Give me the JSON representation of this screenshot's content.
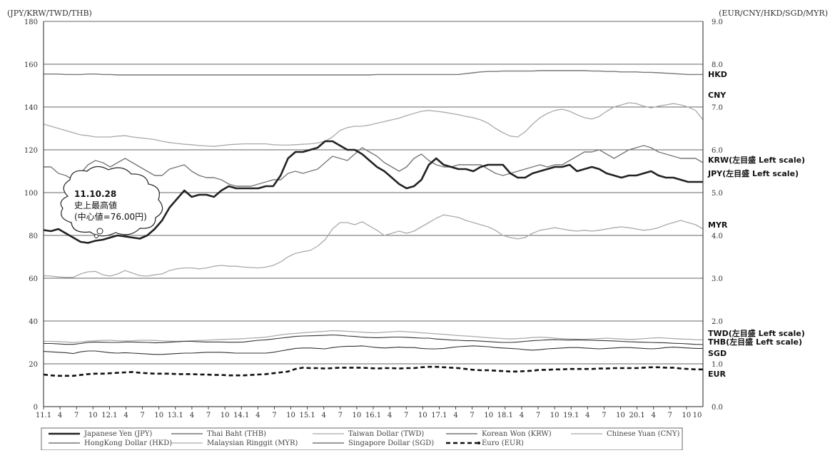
{
  "chart_data": {
    "type": "line",
    "left_axis_title": "(JPY/KRW/TWD/THB)",
    "right_axis_title": "(EUR/CNY/HKD/SGD/MYR)",
    "left_ylim": [
      0,
      180
    ],
    "left_ticks": [
      "0",
      "20",
      "40",
      "60",
      "80",
      "100",
      "120",
      "140",
      "160",
      "180"
    ],
    "right_ylim": [
      0,
      9
    ],
    "right_ticks": [
      "0.0",
      "1.0",
      "2.0",
      "3.0",
      "4.0",
      "5.0",
      "6.0",
      "7.0",
      "8.0",
      "9.0"
    ],
    "x_ticks": [
      "11.1",
      "4",
      "7",
      "10",
      "12.1",
      "4",
      "7",
      "10",
      "13.1",
      "4",
      "7",
      "10",
      "14.1",
      "4",
      "7",
      "10",
      "15.1",
      "4",
      "7",
      "10",
      "16.1",
      "4",
      "7",
      "10",
      "17.1",
      "4",
      "7",
      "10",
      "18.1",
      "4",
      "7",
      "10",
      "19.1",
      "4",
      "7",
      "10",
      "20.1",
      "4",
      "7",
      "10"
    ],
    "grid": "horizontal",
    "annotation": {
      "lines": [
        "11.10.28",
        "史上最高値",
        "(中心値=76.00円)"
      ]
    },
    "series": [
      {
        "code": "JPY",
        "name": "Japanese Yen (JPY)",
        "axis": "left",
        "end_label": "JPY(左目盛 Left scale)",
        "style": "thick",
        "values": [
          82.5,
          82,
          83,
          81,
          79,
          77,
          76.5,
          77.5,
          78,
          79,
          80,
          79.5,
          79,
          78.5,
          80,
          83,
          87,
          93,
          97,
          101,
          98,
          99,
          99,
          98,
          101,
          103,
          102,
          102,
          102,
          102,
          103,
          103,
          108,
          116,
          119,
          119,
          120,
          121,
          124,
          124,
          122,
          120,
          120,
          118,
          115,
          112,
          110,
          107,
          104,
          102,
          103,
          106,
          113,
          116,
          113,
          112,
          111,
          111,
          110,
          112,
          113,
          113,
          113,
          109,
          107,
          107,
          109,
          110,
          111,
          112,
          112,
          113,
          110,
          111,
          112,
          111,
          109,
          108,
          107,
          108,
          108,
          109,
          110,
          108,
          107,
          107,
          106,
          105,
          105,
          105
        ]
      },
      {
        "code": "KRW",
        "name": "Korean Won (KRW)",
        "axis": "left",
        "end_label": "KRW(左目盛 Left scale)",
        "style": "medium",
        "values": [
          112,
          112,
          109,
          108,
          106,
          109,
          113,
          115,
          114,
          112,
          114,
          116,
          114,
          112,
          110,
          108,
          108,
          111,
          112,
          113,
          110,
          108,
          107,
          107,
          106,
          104,
          103,
          103,
          103,
          104,
          105,
          106,
          106,
          109,
          110,
          109,
          110,
          111,
          114,
          117,
          116,
          115,
          118,
          121,
          119,
          117,
          114,
          112,
          110,
          112,
          116,
          118,
          115,
          113,
          112,
          112,
          113,
          113,
          113,
          113,
          111,
          109,
          108,
          109,
          110,
          111,
          112,
          113,
          112,
          113,
          113,
          115,
          117,
          119,
          119,
          120,
          118,
          116,
          118,
          120,
          121,
          122,
          121,
          119,
          118,
          117,
          116,
          116,
          116,
          114
        ]
      },
      {
        "code": "THB",
        "name": "Thai Baht (THB)",
        "axis": "left",
        "end_label": "THB(左目盛 Left scale)",
        "style": "thin-dark",
        "values": [
          29.5,
          29.5,
          29.3,
          29.1,
          29.1,
          29.5,
          30,
          30.2,
          30.1,
          30,
          30,
          30.2,
          30.2,
          30.1,
          30,
          29.8,
          29.9,
          30.1,
          30.3,
          30.5,
          30.5,
          30.3,
          30.2,
          30.2,
          30.2,
          30.1,
          30.1,
          30.2,
          30.6,
          31,
          31.2,
          31.6,
          32,
          32.4,
          32.8,
          33,
          33.1,
          33.2,
          33.3,
          33.5,
          33.3,
          33,
          32.8,
          32.5,
          32.3,
          32.2,
          32.3,
          32.5,
          32.5,
          32.4,
          32.2,
          32,
          32,
          31.6,
          31.4,
          31.1,
          31,
          30.8,
          30.8,
          30.6,
          30.4,
          30.2,
          30,
          30,
          30.2,
          30.5,
          30.8,
          31,
          31.2,
          31.3,
          31.2,
          31.1,
          31.2,
          31.1,
          31,
          30.9,
          30.8,
          30.7,
          30.5,
          30.3,
          30.2,
          30.1,
          30,
          29.9,
          29.8,
          29.6,
          29.5,
          29.3,
          29.1,
          29
        ]
      },
      {
        "code": "TWD",
        "name": "Taiwan Dollar (TWD)",
        "axis": "left",
        "end_label": "TWD(左目盛 Left scale)",
        "style": "thin-light",
        "values": [
          30.5,
          30.5,
          30.4,
          30.2,
          30,
          30.2,
          30.6,
          30.8,
          31,
          31,
          30.8,
          30.7,
          30.8,
          31,
          31,
          30.9,
          30.7,
          30.6,
          30.5,
          30.6,
          30.8,
          30.9,
          31,
          31.2,
          31.4,
          31.5,
          31.6,
          31.8,
          32,
          32.2,
          32.5,
          33,
          33.5,
          34,
          34.2,
          34.5,
          34.8,
          35,
          35.2,
          35.5,
          35.4,
          35.2,
          35,
          34.8,
          34.6,
          34.5,
          34.8,
          35,
          35.2,
          35,
          34.8,
          34.5,
          34.3,
          34,
          33.8,
          33.5,
          33.2,
          33,
          32.8,
          32.5,
          32.2,
          32,
          31.8,
          31.6,
          31.8,
          32,
          32.3,
          32.5,
          32.3,
          32,
          31.8,
          31.6,
          31.5,
          31.5,
          31.6,
          31.8,
          32,
          31.8,
          31.6,
          31.4,
          31.5,
          31.8,
          32,
          32.2,
          32,
          31.8,
          31.6,
          31.5,
          31.3,
          31.2
        ]
      },
      {
        "code": "CNY",
        "name": "Chinese Yuan (CNY)",
        "axis": "right",
        "end_label": "CNY",
        "style": "thin-light",
        "values": [
          6.6,
          6.55,
          6.5,
          6.45,
          6.4,
          6.35,
          6.33,
          6.3,
          6.3,
          6.3,
          6.32,
          6.33,
          6.3,
          6.28,
          6.26,
          6.24,
          6.2,
          6.17,
          6.15,
          6.13,
          6.12,
          6.1,
          6.09,
          6.08,
          6.1,
          6.12,
          6.13,
          6.14,
          6.14,
          6.14,
          6.14,
          6.12,
          6.11,
          6.11,
          6.12,
          6.13,
          6.14,
          6.16,
          6.2,
          6.3,
          6.45,
          6.52,
          6.55,
          6.55,
          6.58,
          6.62,
          6.66,
          6.7,
          6.74,
          6.8,
          6.85,
          6.9,
          6.92,
          6.9,
          6.88,
          6.85,
          6.82,
          6.78,
          6.75,
          6.7,
          6.62,
          6.5,
          6.4,
          6.32,
          6.3,
          6.42,
          6.6,
          6.75,
          6.85,
          6.92,
          6.95,
          6.9,
          6.82,
          6.75,
          6.72,
          6.78,
          6.9,
          7.0,
          7.05,
          7.1,
          7.08,
          7.02,
          6.98,
          7.02,
          7.05,
          7.08,
          7.05,
          7.0,
          6.92,
          6.7
        ]
      },
      {
        "code": "HKD",
        "name": "HongKong Dollar (HKD)",
        "axis": "right",
        "end_label": "HKD",
        "style": "medium",
        "values": [
          7.77,
          7.77,
          7.77,
          7.76,
          7.76,
          7.76,
          7.77,
          7.77,
          7.76,
          7.76,
          7.75,
          7.75,
          7.75,
          7.75,
          7.75,
          7.75,
          7.75,
          7.75,
          7.75,
          7.75,
          7.75,
          7.75,
          7.75,
          7.75,
          7.75,
          7.75,
          7.75,
          7.75,
          7.75,
          7.75,
          7.75,
          7.75,
          7.75,
          7.75,
          7.75,
          7.75,
          7.75,
          7.75,
          7.75,
          7.75,
          7.75,
          7.75,
          7.75,
          7.75,
          7.75,
          7.76,
          7.76,
          7.76,
          7.76,
          7.76,
          7.76,
          7.76,
          7.76,
          7.76,
          7.76,
          7.76,
          7.76,
          7.78,
          7.8,
          7.82,
          7.83,
          7.83,
          7.84,
          7.84,
          7.84,
          7.84,
          7.84,
          7.85,
          7.85,
          7.85,
          7.85,
          7.85,
          7.85,
          7.85,
          7.84,
          7.84,
          7.83,
          7.83,
          7.82,
          7.82,
          7.82,
          7.81,
          7.81,
          7.8,
          7.79,
          7.78,
          7.77,
          7.76,
          7.76,
          7.76
        ]
      },
      {
        "code": "MYR",
        "name": "Malaysian Ringgit (MYR)",
        "axis": "right",
        "end_label": "MYR",
        "style": "thin-light",
        "values": [
          3.06,
          3.05,
          3.03,
          3.02,
          3.02,
          3.1,
          3.15,
          3.16,
          3.08,
          3.05,
          3.1,
          3.18,
          3.12,
          3.06,
          3.05,
          3.08,
          3.1,
          3.18,
          3.22,
          3.24,
          3.24,
          3.22,
          3.24,
          3.28,
          3.3,
          3.28,
          3.28,
          3.26,
          3.25,
          3.24,
          3.26,
          3.3,
          3.38,
          3.5,
          3.58,
          3.62,
          3.65,
          3.75,
          3.9,
          4.15,
          4.3,
          4.3,
          4.25,
          4.32,
          4.22,
          4.12,
          4.0,
          4.05,
          4.1,
          4.05,
          4.1,
          4.2,
          4.3,
          4.4,
          4.48,
          4.45,
          4.42,
          4.35,
          4.3,
          4.25,
          4.2,
          4.12,
          4.0,
          3.95,
          3.92,
          3.95,
          4.05,
          4.12,
          4.15,
          4.18,
          4.15,
          4.12,
          4.1,
          4.12,
          4.1,
          4.12,
          4.15,
          4.18,
          4.2,
          4.18,
          4.15,
          4.12,
          4.14,
          4.18,
          4.25,
          4.3,
          4.35,
          4.3,
          4.25,
          4.15
        ]
      },
      {
        "code": "SGD",
        "name": "Singapore Dollar (SGD)",
        "axis": "right",
        "end_label": "SGD",
        "style": "thin-dark",
        "values": [
          1.29,
          1.28,
          1.27,
          1.26,
          1.24,
          1.28,
          1.3,
          1.3,
          1.28,
          1.26,
          1.25,
          1.26,
          1.25,
          1.24,
          1.23,
          1.22,
          1.22,
          1.23,
          1.24,
          1.25,
          1.25,
          1.26,
          1.27,
          1.27,
          1.27,
          1.26,
          1.25,
          1.25,
          1.25,
          1.25,
          1.25,
          1.27,
          1.3,
          1.33,
          1.36,
          1.37,
          1.37,
          1.36,
          1.35,
          1.38,
          1.4,
          1.41,
          1.41,
          1.42,
          1.4,
          1.38,
          1.37,
          1.38,
          1.39,
          1.38,
          1.38,
          1.36,
          1.35,
          1.35,
          1.36,
          1.38,
          1.4,
          1.41,
          1.42,
          1.41,
          1.4,
          1.38,
          1.37,
          1.36,
          1.35,
          1.33,
          1.32,
          1.33,
          1.35,
          1.36,
          1.37,
          1.38,
          1.38,
          1.37,
          1.36,
          1.35,
          1.36,
          1.37,
          1.38,
          1.38,
          1.37,
          1.36,
          1.35,
          1.36,
          1.38,
          1.39,
          1.38,
          1.37,
          1.36,
          1.36
        ]
      },
      {
        "code": "EUR",
        "name": "Euro (EUR)",
        "axis": "right",
        "end_label": "EUR",
        "style": "dashed",
        "values": [
          0.75,
          0.73,
          0.72,
          0.72,
          0.72,
          0.74,
          0.76,
          0.77,
          0.77,
          0.78,
          0.79,
          0.8,
          0.81,
          0.79,
          0.78,
          0.77,
          0.77,
          0.77,
          0.76,
          0.76,
          0.76,
          0.75,
          0.75,
          0.74,
          0.74,
          0.73,
          0.73,
          0.73,
          0.74,
          0.75,
          0.76,
          0.78,
          0.8,
          0.82,
          0.88,
          0.91,
          0.9,
          0.9,
          0.89,
          0.9,
          0.91,
          0.91,
          0.91,
          0.91,
          0.9,
          0.89,
          0.9,
          0.9,
          0.89,
          0.9,
          0.9,
          0.92,
          0.93,
          0.93,
          0.92,
          0.91,
          0.9,
          0.88,
          0.86,
          0.85,
          0.85,
          0.84,
          0.83,
          0.82,
          0.82,
          0.83,
          0.84,
          0.86,
          0.86,
          0.87,
          0.87,
          0.88,
          0.88,
          0.88,
          0.88,
          0.89,
          0.89,
          0.9,
          0.9,
          0.9,
          0.9,
          0.91,
          0.92,
          0.92,
          0.91,
          0.91,
          0.89,
          0.88,
          0.87,
          0.87
        ]
      }
    ],
    "legend": [
      {
        "code": "JPY",
        "label": "Japanese Yen (JPY)"
      },
      {
        "code": "THB",
        "label": "Thai Baht (THB)"
      },
      {
        "code": "TWD",
        "label": "Taiwan Dollar (TWD)"
      },
      {
        "code": "KRW",
        "label": "Korean Won (KRW)"
      },
      {
        "code": "CNY",
        "label": "Chinese Yuan (CNY)"
      },
      {
        "code": "HKD",
        "label": "HongKong Dollar (HKD)"
      },
      {
        "code": "MYR",
        "label": "Malaysian Ringgit (MYR)"
      },
      {
        "code": "SGD",
        "label": "Singapore Dollar (SGD)"
      },
      {
        "code": "EUR",
        "label": "Euro (EUR)"
      }
    ],
    "legend_placement": "bottom"
  }
}
